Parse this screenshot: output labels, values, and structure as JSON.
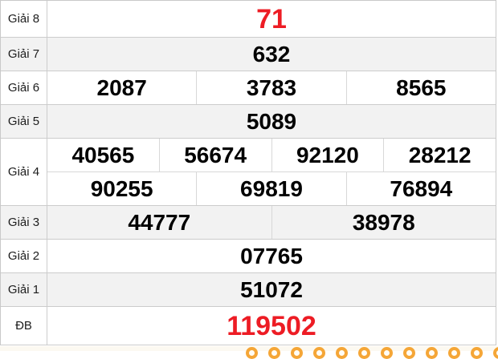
{
  "table": {
    "name": "lottery-results",
    "rows": [
      {
        "label": "Giải 8",
        "special": true,
        "cells": [
          [
            "71"
          ]
        ]
      },
      {
        "label": "Giải 7",
        "special": false,
        "cells": [
          [
            "632"
          ]
        ]
      },
      {
        "label": "Giải 6",
        "special": false,
        "cells": [
          [
            "2087",
            "3783",
            "8565"
          ]
        ]
      },
      {
        "label": "Giải 5",
        "special": false,
        "cells": [
          [
            "5089"
          ]
        ]
      },
      {
        "label": "Giải 4",
        "special": false,
        "cells": [
          [
            "40565",
            "56674",
            "92120",
            "28212"
          ],
          [
            "90255",
            "69819",
            "76894"
          ]
        ]
      },
      {
        "label": "Giải 3",
        "special": false,
        "cells": [
          [
            "44777",
            "38978"
          ]
        ]
      },
      {
        "label": "Giải 2",
        "special": false,
        "cells": [
          [
            "07765"
          ]
        ]
      },
      {
        "label": "Giải 1",
        "special": false,
        "cells": [
          [
            "51072"
          ]
        ]
      },
      {
        "label": "ĐB",
        "special": true,
        "cells": [
          [
            "119502"
          ]
        ]
      }
    ]
  },
  "colors": {
    "special_number": "#ed1c24",
    "number": "#000000",
    "shaded_row": "#f2f2f2",
    "border": "#cccccc",
    "decor_ball": "#f5a637"
  },
  "decor": {
    "ball_count": 12
  }
}
